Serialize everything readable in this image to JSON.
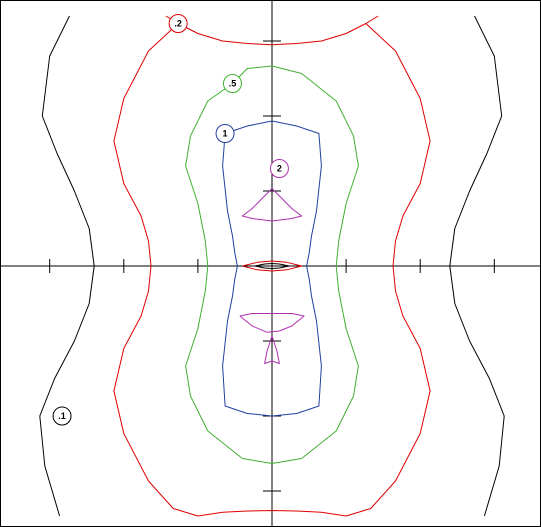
{
  "chart_data": {
    "type": "contour",
    "xlim": [
      -1,
      1
    ],
    "ylim": [
      -1,
      1
    ],
    "x_ticks": [
      -0.9,
      -0.6,
      -0.3,
      0.3,
      0.6,
      0.9
    ],
    "y_ticks": [
      -0.9,
      -0.6,
      -0.3,
      0.3,
      0.6,
      0.9
    ],
    "levels": [
      {
        "label": ".1",
        "color": "#000000",
        "label_pos": [
          -0.85,
          -0.6
        ],
        "paths": [
          [
            [
              -0.82,
              1.0
            ],
            [
              -0.9,
              0.84
            ],
            [
              -0.93,
              0.6
            ],
            [
              -0.87,
              0.45
            ],
            [
              -0.8,
              0.3
            ],
            [
              -0.74,
              0.15
            ],
            [
              -0.72,
              0.0
            ],
            [
              -0.74,
              -0.15
            ],
            [
              -0.8,
              -0.3
            ],
            [
              -0.88,
              -0.45
            ],
            [
              -0.94,
              -0.6
            ],
            [
              -0.92,
              -0.8
            ],
            [
              -0.86,
              -1.0
            ]
          ],
          [
            [
              0.82,
              1.0
            ],
            [
              0.9,
              0.84
            ],
            [
              0.93,
              0.6
            ],
            [
              0.87,
              0.45
            ],
            [
              0.8,
              0.3
            ],
            [
              0.74,
              0.15
            ],
            [
              0.72,
              0.0
            ],
            [
              0.74,
              -0.15
            ],
            [
              0.8,
              -0.3
            ],
            [
              0.88,
              -0.45
            ],
            [
              0.94,
              -0.6
            ],
            [
              0.92,
              -0.8
            ],
            [
              0.86,
              -1.0
            ]
          ]
        ]
      },
      {
        "label": ".2",
        "color": "#e00000",
        "label_pos": [
          -0.38,
          0.97
        ],
        "paths": [
          [
            [
              -0.43,
              1.0
            ],
            [
              -0.36,
              0.96
            ],
            [
              -0.3,
              0.93
            ],
            [
              -0.2,
              0.9
            ],
            [
              -0.1,
              0.89
            ],
            [
              0.0,
              0.885
            ],
            [
              0.1,
              0.89
            ],
            [
              0.2,
              0.9
            ],
            [
              0.3,
              0.93
            ],
            [
              0.38,
              0.97
            ],
            [
              0.43,
              1.0
            ]
          ],
          [
            [
              -0.38,
              0.97
            ],
            [
              -0.5,
              0.86
            ],
            [
              -0.6,
              0.67
            ],
            [
              -0.64,
              0.5
            ],
            [
              -0.6,
              0.33
            ],
            [
              -0.53,
              0.2
            ],
            [
              -0.5,
              0.1
            ],
            [
              -0.49,
              0.0
            ],
            [
              -0.5,
              -0.1
            ],
            [
              -0.53,
              -0.2
            ],
            [
              -0.6,
              -0.33
            ],
            [
              -0.64,
              -0.5
            ],
            [
              -0.6,
              -0.67
            ],
            [
              -0.5,
              -0.86
            ],
            [
              -0.4,
              -0.97
            ],
            [
              -0.3,
              -1.0
            ]
          ],
          [
            [
              0.38,
              0.97
            ],
            [
              0.5,
              0.86
            ],
            [
              0.6,
              0.67
            ],
            [
              0.64,
              0.5
            ],
            [
              0.6,
              0.33
            ],
            [
              0.53,
              0.2
            ],
            [
              0.5,
              0.1
            ],
            [
              0.49,
              0.0
            ],
            [
              0.5,
              -0.1
            ],
            [
              0.53,
              -0.2
            ],
            [
              0.6,
              -0.33
            ],
            [
              0.64,
              -0.5
            ],
            [
              0.6,
              -0.67
            ],
            [
              0.5,
              -0.86
            ],
            [
              0.4,
              -0.97
            ],
            [
              0.3,
              -1.0
            ]
          ],
          [
            [
              -0.3,
              -1.0
            ],
            [
              -0.2,
              -0.985
            ],
            [
              -0.1,
              -0.98
            ],
            [
              0.0,
              -0.978
            ],
            [
              0.1,
              -0.98
            ],
            [
              0.2,
              -0.985
            ],
            [
              0.3,
              -1.0
            ]
          ]
        ]
      },
      {
        "label": ".5",
        "color": "#40b030",
        "label_pos": [
          -0.16,
          0.73
        ],
        "paths": [
          [
            [
              0.0,
              0.8
            ],
            [
              -0.1,
              0.79
            ],
            [
              -0.16,
              0.73
            ],
            [
              -0.26,
              0.66
            ],
            [
              -0.33,
              0.52
            ],
            [
              -0.35,
              0.4
            ],
            [
              -0.3,
              0.25
            ],
            [
              -0.27,
              0.1
            ],
            [
              -0.26,
              0.0
            ],
            [
              -0.27,
              -0.1
            ],
            [
              -0.3,
              -0.25
            ],
            [
              -0.35,
              -0.4
            ],
            [
              -0.33,
              -0.52
            ],
            [
              -0.26,
              -0.66
            ],
            [
              -0.12,
              -0.77
            ],
            [
              0.0,
              -0.79
            ],
            [
              0.12,
              -0.77
            ],
            [
              0.26,
              -0.66
            ],
            [
              0.33,
              -0.52
            ],
            [
              0.35,
              -0.4
            ],
            [
              0.3,
              -0.25
            ],
            [
              0.27,
              -0.1
            ],
            [
              0.26,
              0.0
            ],
            [
              0.27,
              0.1
            ],
            [
              0.3,
              0.25
            ],
            [
              0.35,
              0.4
            ],
            [
              0.33,
              0.52
            ],
            [
              0.26,
              0.66
            ],
            [
              0.12,
              0.77
            ],
            [
              0.0,
              0.8
            ]
          ]
        ]
      },
      {
        "label": "1",
        "color": "#2040a0",
        "label_pos": [
          -0.19,
          0.53
        ],
        "paths": [
          [
            [
              0.0,
              0.58
            ],
            [
              -0.1,
              0.56
            ],
            [
              -0.19,
              0.53
            ],
            [
              -0.2,
              0.4
            ],
            [
              -0.18,
              0.22
            ],
            [
              -0.16,
              0.12
            ],
            [
              -0.15,
              0.05
            ],
            [
              -0.14,
              0.0
            ],
            [
              -0.15,
              -0.05
            ],
            [
              -0.16,
              -0.12
            ],
            [
              -0.18,
              -0.22
            ],
            [
              -0.2,
              -0.4
            ],
            [
              -0.19,
              -0.56
            ],
            [
              -0.1,
              -0.59
            ],
            [
              0.0,
              -0.6
            ],
            [
              0.1,
              -0.59
            ],
            [
              0.19,
              -0.56
            ],
            [
              0.2,
              -0.4
            ],
            [
              0.18,
              -0.22
            ],
            [
              0.16,
              -0.12
            ],
            [
              0.15,
              -0.05
            ],
            [
              0.14,
              0.0
            ],
            [
              0.15,
              0.05
            ],
            [
              0.16,
              0.12
            ],
            [
              0.18,
              0.22
            ],
            [
              0.2,
              0.4
            ],
            [
              0.19,
              0.53
            ],
            [
              0.1,
              0.56
            ],
            [
              0.0,
              0.58
            ]
          ]
        ]
      },
      {
        "label": "2",
        "color": "#b030b0",
        "label_pos": [
          0.03,
          0.39
        ],
        "paths": [
          [
            [
              0.0,
              0.31
            ],
            [
              -0.05,
              0.26
            ],
            [
              -0.08,
              0.23
            ],
            [
              -0.12,
              0.2
            ],
            [
              -0.08,
              0.19
            ],
            [
              0.0,
              0.18
            ],
            [
              0.08,
              0.19
            ],
            [
              0.12,
              0.2
            ],
            [
              0.08,
              0.23
            ],
            [
              0.05,
              0.26
            ],
            [
              0.0,
              0.31
            ]
          ],
          [
            [
              -0.13,
              -0.2
            ],
            [
              -0.08,
              -0.19
            ],
            [
              0.0,
              -0.19
            ],
            [
              0.08,
              -0.19
            ],
            [
              0.13,
              -0.2
            ],
            [
              0.08,
              -0.24
            ],
            [
              0.03,
              -0.26
            ],
            [
              -0.02,
              -0.265
            ],
            [
              -0.08,
              -0.24
            ],
            [
              -0.13,
              -0.2
            ]
          ],
          [
            [
              0.0,
              -0.28
            ],
            [
              0.02,
              -0.34
            ],
            [
              0.03,
              -0.39
            ],
            [
              0.0,
              -0.38
            ],
            [
              -0.03,
              -0.39
            ],
            [
              -0.02,
              -0.34
            ],
            [
              0.0,
              -0.28
            ]
          ]
        ]
      },
      {
        "label": "",
        "color": "#e00000",
        "label_pos": null,
        "paths": [
          [
            [
              -0.12,
              0.0
            ],
            [
              -0.06,
              0.015
            ],
            [
              0.0,
              0.02
            ],
            [
              0.06,
              0.015
            ],
            [
              0.12,
              0.0
            ],
            [
              0.06,
              -0.015
            ],
            [
              0.0,
              -0.02
            ],
            [
              -0.06,
              -0.015
            ],
            [
              -0.12,
              0.0
            ]
          ]
        ]
      },
      {
        "label": "",
        "color": "#000000",
        "label_pos": null,
        "paths": [
          [
            [
              -0.07,
              0.0
            ],
            [
              -0.03,
              0.008
            ],
            [
              0.0,
              0.01
            ],
            [
              0.03,
              0.008
            ],
            [
              0.07,
              0.0
            ],
            [
              0.03,
              -0.008
            ],
            [
              0.0,
              -0.01
            ],
            [
              -0.03,
              -0.008
            ],
            [
              -0.07,
              0.0
            ]
          ]
        ]
      }
    ]
  }
}
